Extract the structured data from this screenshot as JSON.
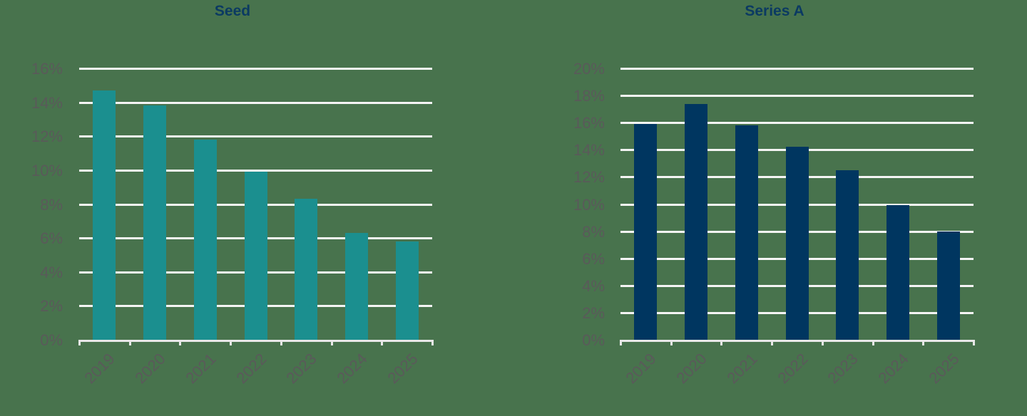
{
  "colors": {
    "background": "#48734d",
    "title": "#0b3a62",
    "seed_bar": "#1b8f8f",
    "series_a_bar": "#003660",
    "gridline": "#f4f4f4",
    "label": "#5a5a5a"
  },
  "chart_data": [
    {
      "type": "bar",
      "title": "Seed",
      "xlabel": "",
      "ylabel": "",
      "categories": [
        "2019",
        "2020",
        "2021",
        "2022",
        "2023",
        "2024",
        "2025"
      ],
      "values": [
        14.7,
        13.8,
        11.8,
        9.9,
        8.3,
        6.3,
        5.8
      ],
      "value_format": "percent",
      "ylim": [
        0,
        16
      ],
      "yticks": [
        "0%",
        "2%",
        "4%",
        "6%",
        "8%",
        "10%",
        "12%",
        "14%",
        "16%"
      ],
      "grid": true,
      "legend": null
    },
    {
      "type": "bar",
      "title": "Series A",
      "xlabel": "",
      "ylabel": "",
      "categories": [
        "2019",
        "2020",
        "2021",
        "2022",
        "2023",
        "2024",
        "2025"
      ],
      "values": [
        15.9,
        17.4,
        15.8,
        14.2,
        12.5,
        9.9,
        8.0
      ],
      "value_format": "percent",
      "ylim": [
        0,
        20
      ],
      "yticks": [
        "0%",
        "2%",
        "4%",
        "6%",
        "8%",
        "10%",
        "12%",
        "14%",
        "16%",
        "18%",
        "20%"
      ],
      "grid": true,
      "legend": null
    }
  ]
}
